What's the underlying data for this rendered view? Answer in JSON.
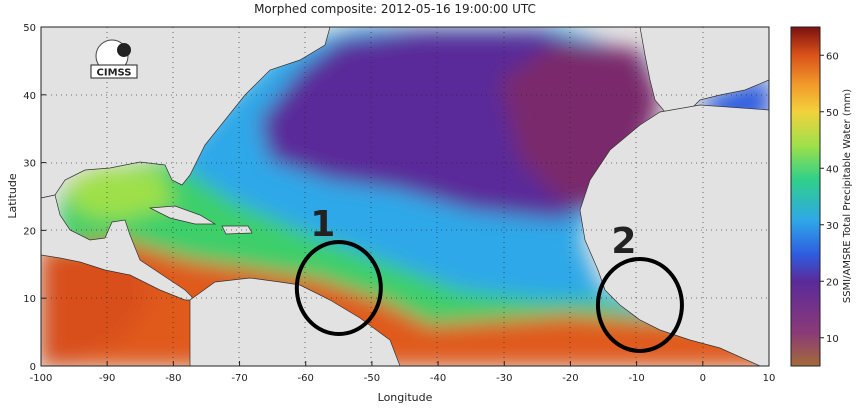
{
  "title": "Morphed composite: 2012-05-16 19:00:00 UTC",
  "axes": {
    "xlabel": "Longitude",
    "ylabel": "Latitude",
    "x_ticks": [
      -100,
      -90,
      -80,
      -70,
      -60,
      -50,
      -40,
      -30,
      -20,
      -10,
      0,
      10
    ],
    "y_ticks": [
      0,
      10,
      20,
      30,
      40,
      50
    ],
    "xlim": [
      -100,
      10
    ],
    "ylim": [
      0,
      50
    ]
  },
  "colorbar": {
    "label": "SSMI/AMSRE Total Precipitable Water (mm)",
    "ticks": [
      10,
      20,
      30,
      40,
      50,
      60
    ],
    "range": [
      5,
      65
    ]
  },
  "logo": {
    "text": "CIMSS"
  },
  "annotations": [
    {
      "label": "1",
      "lon": -55,
      "lat": 11.5
    },
    {
      "label": "2",
      "lon": -9.5,
      "lat": 9.0
    }
  ],
  "colors": {
    "land": "#e2e2e2",
    "dry": "#7a2a6c",
    "moist": "#2f8fe6",
    "humid": "#3ecf6a",
    "wet": "#e05a1a",
    "annotation": "#000000"
  }
}
